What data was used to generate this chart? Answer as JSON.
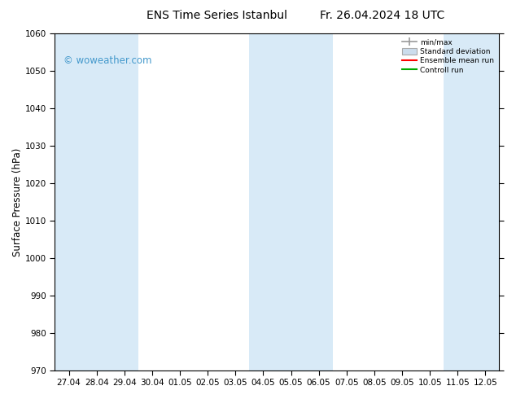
{
  "title": "ENS Time Series Istanbul",
  "title2": "Fr. 26.04.2024 18 UTC",
  "ylabel": "Surface Pressure (hPa)",
  "ylim": [
    970,
    1060
  ],
  "yticks": [
    970,
    980,
    990,
    1000,
    1010,
    1020,
    1030,
    1040,
    1050,
    1060
  ],
  "xlabel_dates": [
    "27.04",
    "28.04",
    "29.04",
    "30.04",
    "01.05",
    "02.05",
    "03.05",
    "04.05",
    "05.05",
    "06.05",
    "07.05",
    "08.05",
    "09.05",
    "10.05",
    "11.05",
    "12.05"
  ],
  "shaded_band_color": "#d8eaf7",
  "background_color": "#ffffff",
  "watermark_text": "© woweather.com",
  "watermark_color": "#4499cc",
  "legend_items": [
    {
      "label": "min/max",
      "color": "#aaaaaa",
      "style": "errorbar"
    },
    {
      "label": "Standard deviation",
      "color": "#ccdded",
      "style": "box"
    },
    {
      "label": "Ensemble mean run",
      "color": "#ff0000",
      "style": "line"
    },
    {
      "label": "Controll run",
      "color": "#00aa00",
      "style": "line"
    }
  ],
  "tick_label_fontsize": 7.5,
  "axis_label_fontsize": 8.5,
  "title_fontsize": 10,
  "n_dates": 16,
  "shaded_col_indices": [
    0,
    1,
    2,
    7,
    8,
    9,
    14,
    15
  ]
}
